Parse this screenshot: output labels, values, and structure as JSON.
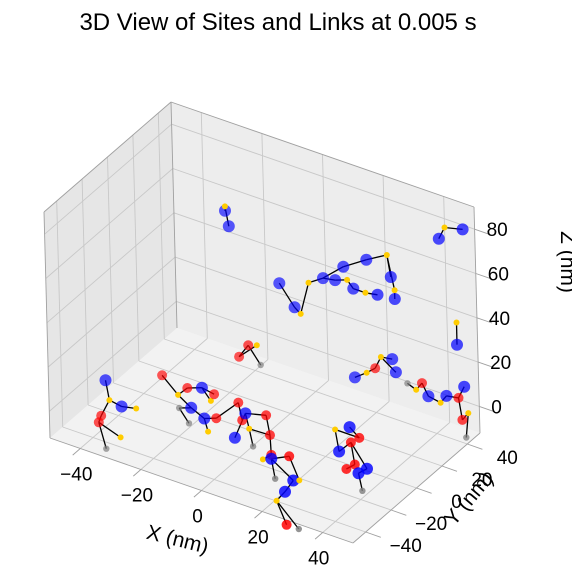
{
  "chart_data": {
    "type": "scatter3d",
    "title": "3D View of Sites and Links at 0.005 s",
    "xlabel": "X (nm)",
    "ylabel": "Y (nm)",
    "zlabel": "Z (nm)",
    "xlim": [
      -50,
      50
    ],
    "ylim": [
      -50,
      50
    ],
    "zlim": [
      -12,
      90
    ],
    "xticks": [
      "−40",
      "−20",
      "0",
      "20",
      "40"
    ],
    "yticks": [
      "−40",
      "−20",
      "0",
      "20",
      "40"
    ],
    "zticks": [
      "0",
      "20",
      "40",
      "60",
      "80"
    ],
    "grid": true,
    "colors": {
      "blue": "#0000ff",
      "red": "#ff0000",
      "yellow": "#ffcc00",
      "gray": "#808080",
      "link": "#000000",
      "pane_left": "#e6e6e6",
      "pane_right": "#ededed",
      "pane_floor": "#f2f2f2"
    },
    "sites": [
      {
        "x": -44,
        "y": -20,
        "z": 2,
        "c": "blue"
      },
      {
        "x": -42,
        "y": -22,
        "z": -5,
        "c": "yellow"
      },
      {
        "x": -38,
        "y": -22,
        "z": -6,
        "c": "blue"
      },
      {
        "x": -34,
        "y": -20,
        "z": -6,
        "c": "yellow"
      },
      {
        "x": -44,
        "y": -24,
        "z": -12,
        "c": "red"
      },
      {
        "x": -44,
        "y": -26,
        "z": -14,
        "c": "red"
      },
      {
        "x": -36,
        "y": -28,
        "z": -16,
        "c": "yellow"
      },
      {
        "x": -40,
        "y": -30,
        "z": -22,
        "c": "gray"
      },
      {
        "x": -32,
        "y": -4,
        "z": 2,
        "c": "red"
      },
      {
        "x": -26,
        "y": -6,
        "z": -3,
        "c": "yellow"
      },
      {
        "x": -22,
        "y": -8,
        "z": 3,
        "c": "red"
      },
      {
        "x": -18,
        "y": -6,
        "z": 4,
        "c": "blue"
      },
      {
        "x": -14,
        "y": -6,
        "z": 3,
        "c": "red"
      },
      {
        "x": -20,
        "y": -10,
        "z": -4,
        "c": "blue"
      },
      {
        "x": -24,
        "y": -10,
        "z": -6,
        "c": "gray"
      },
      {
        "x": -14,
        "y": -14,
        "z": -4,
        "c": "blue"
      },
      {
        "x": -10,
        "y": -14,
        "z": -2,
        "c": "red"
      },
      {
        "x": -12,
        "y": -16,
        "z": -8,
        "c": "yellow"
      },
      {
        "x": -6,
        "y": -6,
        "z": 3,
        "c": "red"
      },
      {
        "x": -4,
        "y": -8,
        "z": -3,
        "c": "red"
      },
      {
        "x": -20,
        "y": -12,
        "z": -10,
        "c": "gray"
      },
      {
        "x": -16,
        "y": -4,
        "z": -2,
        "c": "yellow"
      },
      {
        "x": -14,
        "y": 14,
        "z": 10,
        "c": "red"
      },
      {
        "x": -10,
        "y": 12,
        "z": 18,
        "c": "red"
      },
      {
        "x": -6,
        "y": 12,
        "z": 11,
        "c": "gray"
      },
      {
        "x": -8,
        "y": 14,
        "z": 18,
        "c": "yellow"
      },
      {
        "x": -2,
        "y": -10,
        "z": 2,
        "c": "blue"
      },
      {
        "x": 0,
        "y": -12,
        "z": -3,
        "c": "yellow"
      },
      {
        "x": 6,
        "y": -10,
        "z": -4,
        "c": "red"
      },
      {
        "x": 4,
        "y": -8,
        "z": 3,
        "c": "red"
      },
      {
        "x": 2,
        "y": -14,
        "z": -9,
        "c": "gray"
      },
      {
        "x": 8,
        "y": -14,
        "z": -10,
        "c": "red"
      },
      {
        "x": 6,
        "y": -16,
        "z": -12,
        "c": "yellow"
      },
      {
        "x": -4,
        "y": -14,
        "z": -8,
        "c": "blue"
      },
      {
        "x": -20,
        "y": 20,
        "z": 70,
        "c": "blue"
      },
      {
        "x": -20,
        "y": 20,
        "z": 72,
        "c": "yellow"
      },
      {
        "x": -18,
        "y": 18,
        "z": 65,
        "c": "blue"
      },
      {
        "x": 20,
        "y": -28,
        "z": 2,
        "c": "red"
      },
      {
        "x": 14,
        "y": -28,
        "z": -2,
        "c": "blue"
      },
      {
        "x": 16,
        "y": -30,
        "z": -9,
        "c": "gray"
      },
      {
        "x": 22,
        "y": -30,
        "z": -7,
        "c": "blue"
      },
      {
        "x": 20,
        "y": -32,
        "z": -12,
        "c": "blue"
      },
      {
        "x": 18,
        "y": -34,
        "z": -16,
        "c": "yellow"
      },
      {
        "x": 22,
        "y": -36,
        "z": -24,
        "c": "red"
      },
      {
        "x": 26,
        "y": -36,
        "z": -24,
        "c": "gray"
      },
      {
        "x": 24,
        "y": -30,
        "z": -6,
        "c": "yellow"
      },
      {
        "x": 26,
        "y": -6,
        "z": 6,
        "c": "yellow"
      },
      {
        "x": 28,
        "y": -8,
        "z": -2,
        "c": "blue"
      },
      {
        "x": 32,
        "y": -8,
        "z": 4,
        "c": "red"
      },
      {
        "x": 34,
        "y": -10,
        "z": -4,
        "c": "red"
      },
      {
        "x": 32,
        "y": -12,
        "z": -6,
        "c": "red"
      },
      {
        "x": 38,
        "y": -10,
        "z": -4,
        "c": "blue"
      },
      {
        "x": 36,
        "y": -12,
        "z": -6,
        "c": "blue"
      },
      {
        "x": 38,
        "y": -14,
        "z": -12,
        "c": "gray"
      },
      {
        "x": 34,
        "y": -6,
        "z": 6,
        "c": "red"
      },
      {
        "x": 30,
        "y": -4,
        "z": 8,
        "c": "blue"
      },
      {
        "x": -6,
        "y": 28,
        "z": 40,
        "c": "blue"
      },
      {
        "x": -2,
        "y": 30,
        "z": 30,
        "c": "blue"
      },
      {
        "x": 0,
        "y": 30,
        "z": 28,
        "c": "yellow"
      },
      {
        "x": 2,
        "y": 32,
        "z": 42,
        "c": "yellow"
      },
      {
        "x": 6,
        "y": 34,
        "z": 45,
        "c": "blue"
      },
      {
        "x": 10,
        "y": 34,
        "z": 46,
        "c": "blue"
      },
      {
        "x": 14,
        "y": 34,
        "z": 48,
        "c": "yellow"
      },
      {
        "x": 16,
        "y": 34,
        "z": 45,
        "c": "blue"
      },
      {
        "x": 20,
        "y": 34,
        "z": 45,
        "c": "yellow"
      },
      {
        "x": 24,
        "y": 34,
        "z": 46,
        "c": "blue"
      },
      {
        "x": 12,
        "y": 36,
        "z": 52,
        "c": "blue"
      },
      {
        "x": 18,
        "y": 40,
        "z": 56,
        "c": "blue"
      },
      {
        "x": 24,
        "y": 42,
        "z": 60,
        "c": "yellow"
      },
      {
        "x": 26,
        "y": 40,
        "z": 52,
        "c": "blue"
      },
      {
        "x": 28,
        "y": 38,
        "z": 48,
        "c": "yellow"
      },
      {
        "x": 28,
        "y": 38,
        "z": 44,
        "c": "blue"
      },
      {
        "x": 14,
        "y": 38,
        "z": 2,
        "c": "blue"
      },
      {
        "x": 18,
        "y": 38,
        "z": 6,
        "c": "yellow"
      },
      {
        "x": 20,
        "y": 40,
        "z": 8,
        "c": "red"
      },
      {
        "x": 22,
        "y": 40,
        "z": 14,
        "c": "yellow"
      },
      {
        "x": 26,
        "y": 42,
        "z": 8,
        "c": "blue"
      },
      {
        "x": 24,
        "y": 44,
        "z": 12,
        "c": "blue"
      },
      {
        "x": 28,
        "y": 46,
        "z": 2,
        "c": "gray"
      },
      {
        "x": 30,
        "y": 48,
        "z": -1,
        "c": "yellow"
      },
      {
        "x": 32,
        "y": 48,
        "z": 3,
        "c": "red"
      },
      {
        "x": 34,
        "y": 48,
        "z": -2,
        "c": "blue"
      },
      {
        "x": 38,
        "y": 48,
        "z": -3,
        "c": "yellow"
      },
      {
        "x": 40,
        "y": 48,
        "z": 1,
        "c": "blue"
      },
      {
        "x": 44,
        "y": 48,
        "z": 2,
        "c": "red"
      },
      {
        "x": 46,
        "y": 48,
        "z": 8,
        "c": "blue"
      },
      {
        "x": 46,
        "y": 46,
        "z": -6,
        "c": "red"
      },
      {
        "x": 48,
        "y": 46,
        "z": -2,
        "c": "yellow"
      },
      {
        "x": 48,
        "y": 44,
        "z": -12,
        "c": "gray"
      },
      {
        "x": 44,
        "y": 48,
        "z": 26,
        "c": "blue"
      },
      {
        "x": 44,
        "y": 48,
        "z": 36,
        "c": "yellow"
      },
      {
        "x": 38,
        "y": 50,
        "z": 70,
        "c": "blue"
      },
      {
        "x": 40,
        "y": 50,
        "z": 76,
        "c": "yellow"
      },
      {
        "x": 46,
        "y": 50,
        "z": 78,
        "c": "blue"
      }
    ],
    "links": [
      [
        0,
        1
      ],
      [
        1,
        2
      ],
      [
        2,
        3
      ],
      [
        1,
        4
      ],
      [
        4,
        5
      ],
      [
        5,
        6
      ],
      [
        5,
        7
      ],
      [
        8,
        9
      ],
      [
        9,
        10
      ],
      [
        10,
        11
      ],
      [
        11,
        12
      ],
      [
        9,
        13
      ],
      [
        13,
        14
      ],
      [
        13,
        15
      ],
      [
        15,
        16
      ],
      [
        15,
        17
      ],
      [
        16,
        18
      ],
      [
        18,
        19
      ],
      [
        14,
        20
      ],
      [
        11,
        21
      ],
      [
        22,
        23
      ],
      [
        23,
        24
      ],
      [
        22,
        25
      ],
      [
        26,
        27
      ],
      [
        27,
        28
      ],
      [
        28,
        29
      ],
      [
        29,
        26
      ],
      [
        27,
        30
      ],
      [
        28,
        31
      ],
      [
        31,
        32
      ],
      [
        26,
        33
      ],
      [
        34,
        35
      ],
      [
        35,
        36
      ],
      [
        37,
        38
      ],
      [
        38,
        39
      ],
      [
        38,
        40
      ],
      [
        40,
        41
      ],
      [
        41,
        42
      ],
      [
        42,
        43
      ],
      [
        42,
        44
      ],
      [
        37,
        45
      ],
      [
        46,
        47
      ],
      [
        47,
        48
      ],
      [
        48,
        49
      ],
      [
        49,
        50
      ],
      [
        48,
        51
      ],
      [
        51,
        52
      ],
      [
        52,
        53
      ],
      [
        46,
        54
      ],
      [
        54,
        55
      ],
      [
        56,
        57
      ],
      [
        57,
        58
      ],
      [
        58,
        59
      ],
      [
        59,
        60
      ],
      [
        60,
        61
      ],
      [
        61,
        62
      ],
      [
        62,
        63
      ],
      [
        63,
        64
      ],
      [
        64,
        65
      ],
      [
        60,
        66
      ],
      [
        66,
        67
      ],
      [
        67,
        68
      ],
      [
        68,
        69
      ],
      [
        68,
        70
      ],
      [
        70,
        71
      ],
      [
        72,
        73
      ],
      [
        73,
        74
      ],
      [
        74,
        75
      ],
      [
        75,
        76
      ],
      [
        75,
        77
      ],
      [
        78,
        79
      ],
      [
        79,
        80
      ],
      [
        80,
        81
      ],
      [
        81,
        82
      ],
      [
        82,
        83
      ],
      [
        83,
        84
      ],
      [
        84,
        85
      ],
      [
        84,
        86
      ],
      [
        86,
        87
      ],
      [
        87,
        88
      ],
      [
        89,
        90
      ],
      [
        91,
        92
      ],
      [
        92,
        93
      ]
    ]
  }
}
